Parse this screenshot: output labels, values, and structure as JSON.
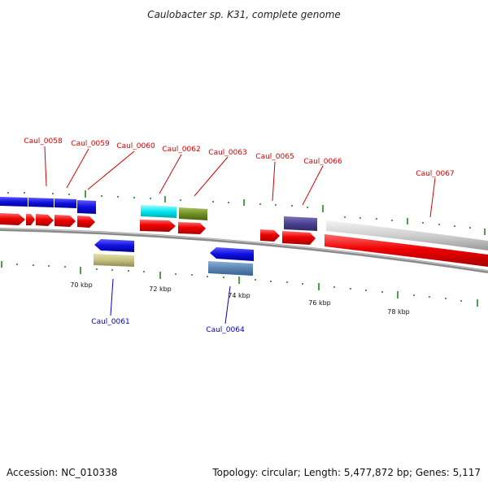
{
  "title": "Caulobacter sp. K31, complete genome",
  "footer": {
    "accession": "Accession: NC_010338",
    "summary": "Topology: circular; Length: 5,477,872 bp; Genes: 5,117"
  },
  "scale_labels": [
    "70 kbp",
    "72 kbp",
    "74 kbp",
    "76 kbp",
    "78 kbp"
  ],
  "genes_top": [
    "Caul_0058",
    "Caul_0059",
    "Caul_0060",
    "Caul_0062",
    "Caul_0063",
    "Caul_0065",
    "Caul_0066",
    "Caul_0067"
  ],
  "genes_bottom": [
    "Caul_0061",
    "Caul_0064"
  ],
  "colors": {
    "forward_label": "#d40000",
    "reverse_label": "#0000c8",
    "cds": "#ee0000",
    "tick": "#1f8a1f"
  }
}
